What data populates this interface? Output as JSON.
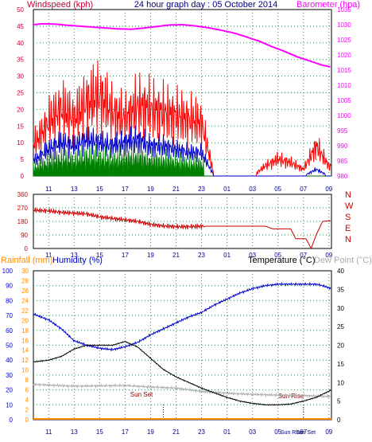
{
  "header": {
    "windspeed_label": "Windspeed (kph)",
    "graph_title": "24 hour graph day : 05 October 2014",
    "barometer_label": "Barometer (hpa)"
  },
  "bottom_header": {
    "rainfall_label": "Rainfall (mm)",
    "humidity_label": "Humidity (%)",
    "temperature_label": "Temperature (°C)",
    "dewpoint_label": "Dew Point (°C)"
  },
  "colors": {
    "background": "#ffffff",
    "frame": "#000000",
    "grid": "#2e8b57",
    "windspeed": "#cc0033",
    "wind_gust": "#ff0000",
    "wind_avg": "#0000cc",
    "wind_low": "#008000",
    "barometer": "#ff00ff",
    "title": "#000080",
    "direction": "#cc0000",
    "rainfall": "#ff8c00",
    "humidity": "#0000cc",
    "temperature": "#000000",
    "dewpoint": "#aaaaaa",
    "sun_marker": "#8b0000"
  },
  "chart_data": [
    {
      "type": "line",
      "name": "wind-and-pressure",
      "x_ticks": [
        "11",
        "13",
        "15",
        "17",
        "19",
        "21",
        "23",
        "01",
        "03",
        "05",
        "07",
        "09"
      ],
      "left_axis": {
        "label": "Windspeed (kph)",
        "ylim": [
          0,
          50
        ],
        "ticks": [
          0,
          5,
          10,
          15,
          20,
          25,
          30,
          35,
          40,
          45,
          50
        ]
      },
      "right_axis": {
        "label": "Barometer (hpa)",
        "ylim": [
          980,
          1035
        ],
        "ticks": [
          980,
          985,
          990,
          995,
          1000,
          1005,
          1010,
          1015,
          1020,
          1025,
          1030,
          1035
        ]
      },
      "series": [
        {
          "name": "Barometer (hpa)",
          "axis": "right",
          "x": [
            9.8,
            10.5,
            11.5,
            12.5,
            13.5,
            14.5,
            15.5,
            16.5,
            17.5,
            18.5,
            19.5,
            20.5,
            21.5,
            22.5,
            23.5,
            24.5,
            25.5,
            26.5,
            27.5,
            28.5,
            29.5,
            30.5,
            31.5,
            32.5,
            33.2
          ],
          "values": [
            1030.0,
            1030.3,
            1030.2,
            1029.8,
            1029.5,
            1029.2,
            1028.9,
            1028.6,
            1028.5,
            1028.9,
            1029.4,
            1029.9,
            1030.0,
            1029.6,
            1029.0,
            1028.2,
            1027.3,
            1026.0,
            1024.6,
            1022.8,
            1021.2,
            1019.4,
            1018.0,
            1016.6,
            1016.0
          ]
        },
        {
          "name": "Wind gust",
          "axis": "left",
          "x": [
            10,
            11,
            12,
            13,
            14,
            15,
            16,
            17,
            18,
            19,
            20,
            21,
            22,
            23,
            24,
            25,
            26,
            27,
            28,
            29,
            30,
            31,
            32,
            33
          ],
          "values": [
            10,
            16,
            20,
            17,
            22,
            24,
            19,
            17,
            21,
            20,
            19,
            18,
            17,
            16,
            0,
            0,
            0,
            0,
            3,
            5,
            4,
            2,
            9,
            3
          ]
        },
        {
          "name": "Wind average",
          "axis": "left",
          "x": [
            10,
            11,
            12,
            13,
            14,
            15,
            16,
            17,
            18,
            19,
            20,
            21,
            22,
            23,
            24,
            25,
            26,
            27,
            28,
            29,
            30,
            31,
            32,
            33
          ],
          "values": [
            5,
            8,
            10,
            9,
            11,
            10,
            9,
            10,
            11,
            9,
            9,
            8,
            7,
            7,
            0,
            0,
            0,
            0,
            0,
            0,
            0,
            0,
            2,
            0
          ]
        }
      ]
    },
    {
      "type": "line",
      "name": "wind-direction",
      "x_ticks": [
        "11",
        "13",
        "15",
        "17",
        "19",
        "21",
        "23",
        "01",
        "03",
        "05",
        "07",
        "09"
      ],
      "left_axis": {
        "ylim": [
          0,
          360
        ],
        "ticks": [
          0,
          90,
          180,
          270,
          360
        ]
      },
      "right_axis": {
        "ticks": [
          "N",
          "W",
          "S",
          "E",
          "N"
        ]
      },
      "series": [
        {
          "name": "Wind direction",
          "x": [
            9.8,
            11,
            12,
            13,
            14,
            15,
            16,
            17,
            18,
            19,
            20,
            21,
            22,
            23,
            23.3,
            28,
            28.6,
            30,
            30.4,
            31.2,
            31.6,
            32.0,
            32.5,
            33.2
          ],
          "values": [
            255,
            250,
            240,
            235,
            230,
            210,
            200,
            190,
            180,
            160,
            150,
            145,
            145,
            148,
            148,
            148,
            130,
            130,
            65,
            65,
            0,
            90,
            180,
            185
          ]
        }
      ]
    },
    {
      "type": "line",
      "name": "temperature-humidity-rain",
      "x_ticks": [
        "11",
        "13",
        "15",
        "17",
        "19",
        "21",
        "23",
        "01",
        "03",
        "05",
        "07",
        "09"
      ],
      "left_axis": {
        "label": "Humidity (%)",
        "ylim": [
          0,
          100
        ],
        "ticks": [
          0,
          10,
          20,
          30,
          40,
          50,
          60,
          70,
          80,
          90,
          100
        ]
      },
      "rain_axis": {
        "label": "Rainfall (mm)",
        "ticks": [
          0,
          2,
          4,
          6,
          8,
          10,
          12,
          14,
          16,
          18,
          20,
          22,
          24,
          26,
          28,
          30
        ]
      },
      "right_axis": {
        "label": "Temperature (°C)",
        "ylim": [
          0,
          40
        ],
        "ticks": [
          0,
          5,
          10,
          15,
          20,
          25,
          30,
          35,
          40
        ]
      },
      "annotations": [
        "Sun Set",
        "Sun Rise",
        "Sun Rise",
        "Sun Set"
      ],
      "series": [
        {
          "name": "Humidity (%)",
          "axis": "left",
          "x": [
            9.8,
            11,
            12,
            13,
            14,
            15,
            16,
            17,
            18,
            19,
            20,
            21,
            22,
            23,
            24,
            25,
            26,
            27,
            28,
            29,
            30,
            31,
            32,
            32.5,
            33.2
          ],
          "values": [
            71,
            67,
            61,
            53,
            50,
            48,
            47,
            49,
            52,
            57,
            61,
            65,
            69,
            72,
            77,
            81,
            85,
            88,
            90,
            91,
            91,
            91,
            91,
            90,
            88
          ]
        },
        {
          "name": "Temperature (°C)",
          "axis": "right",
          "x": [
            9.8,
            11,
            12,
            13,
            14,
            15,
            16,
            17,
            18,
            19,
            20,
            21,
            22,
            23,
            24,
            25,
            26,
            27,
            28,
            29,
            30,
            31,
            32,
            33.2
          ],
          "values": [
            15.5,
            16.0,
            17.0,
            19.0,
            20.0,
            20.0,
            20.0,
            21.0,
            19.5,
            16.5,
            13.5,
            11.5,
            10.0,
            8.5,
            7.2,
            6.0,
            5.0,
            4.4,
            4.0,
            4.0,
            4.2,
            5.0,
            6.0,
            8.0
          ]
        },
        {
          "name": "Dew Point (°C)",
          "axis": "right",
          "x": [
            9.8,
            11,
            13,
            15,
            17,
            19,
            21,
            23,
            25,
            27,
            29,
            31,
            33.2
          ],
          "values": [
            9.5,
            9.3,
            9.0,
            9.1,
            9.2,
            8.8,
            8.5,
            7.6,
            7.1,
            6.8,
            6.6,
            6.5,
            6.2
          ]
        },
        {
          "name": "Rainfall (mm)",
          "axis": "rain",
          "x": [
            9.8,
            33.2
          ],
          "values": [
            0,
            0
          ]
        }
      ]
    }
  ]
}
